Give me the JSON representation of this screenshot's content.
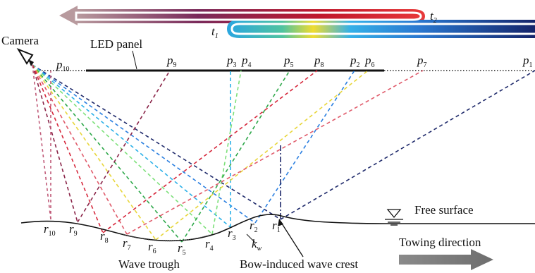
{
  "labels": {
    "camera": "Camera",
    "led_panel": "LED panel",
    "free_surface": "Free surface",
    "towing_direction": "Towing direction",
    "wave_trough": "Wave trough",
    "bow_crest": "Bow-induced wave crest",
    "t1": {
      "main": "t",
      "sub": "1"
    },
    "t2": {
      "main": "t",
      "sub": "2"
    },
    "kw": {
      "main": "k",
      "sub": "w"
    }
  },
  "points_p": [
    {
      "main": "p",
      "sub": "10"
    },
    {
      "main": "p",
      "sub": "9"
    },
    {
      "main": "p",
      "sub": "3"
    },
    {
      "main": "p",
      "sub": "4"
    },
    {
      "main": "p",
      "sub": "5"
    },
    {
      "main": "p",
      "sub": "8"
    },
    {
      "main": "p",
      "sub": "2"
    },
    {
      "main": "p",
      "sub": "6"
    },
    {
      "main": "p",
      "sub": "7"
    },
    {
      "main": "p",
      "sub": "1"
    }
  ],
  "points_r": [
    {
      "main": "r",
      "sub": "10"
    },
    {
      "main": "r",
      "sub": "9"
    },
    {
      "main": "r",
      "sub": "8"
    },
    {
      "main": "r",
      "sub": "7"
    },
    {
      "main": "r",
      "sub": "6"
    },
    {
      "main": "r",
      "sub": "5"
    },
    {
      "main": "r",
      "sub": "4"
    },
    {
      "main": "r",
      "sub": "3"
    },
    {
      "main": "r",
      "sub": "2"
    },
    {
      "main": "r",
      "sub": "1"
    }
  ],
  "icons": {
    "camera": "camera-icon",
    "water_level": "water-level-symbol",
    "towing_arrow": "arrow-right-icon",
    "time_arrow": "arrow-left-icon"
  },
  "colors": {
    "ray_1": "#1f2a6b",
    "ray_2": "#2a7fe0",
    "ray_3": "#2ab0e8",
    "ray_4": "#7de07a",
    "ray_5": "#2ea84a",
    "ray_6": "#e8d63a",
    "ray_7": "#e05a6a",
    "ray_8": "#d6283c",
    "ray_9": "#8a2448",
    "ray_10": "#c05a78",
    "towing_arrow": "#808080"
  }
}
